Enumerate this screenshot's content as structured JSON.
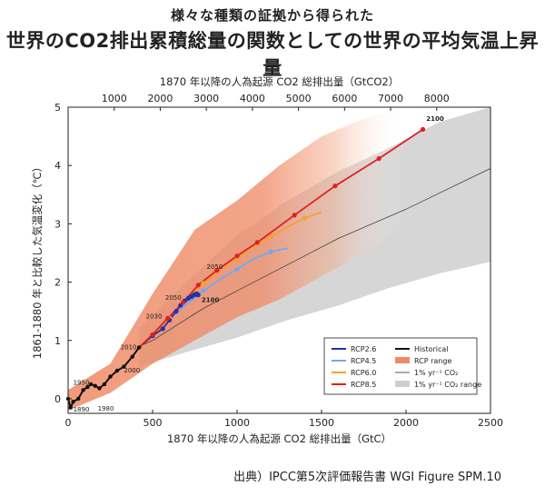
{
  "header": {
    "title_line1": "様々な種類の証拠から得られた",
    "title_line2": "世界のCO2排出累積総量の関数としての世界の平均気温上昇量"
  },
  "source": "出典）IPCC第5次評価報告書 WGI Figure SPM.10",
  "colors": {
    "rcp26": "#2233aa",
    "rcp45": "#77a8e8",
    "rcp60": "#f5a030",
    "rcp85": "#e02020",
    "historical": "#111111",
    "rcp_range": "#ef8a66",
    "onepct_range": "#cfcfcf",
    "onepct_line": "#444444"
  },
  "chart_data": {
    "type": "line",
    "xlabel": "1870 年以降の人為起源 CO2 総排出量（GtC）",
    "top_xlabel": "1870 年以降の人為起源 CO2 総排出量（GtCO2）",
    "ylabel": "1861-1880 年と比較した気温変化（℃）",
    "xlim": [
      0,
      2500
    ],
    "ylim": [
      -0.25,
      5
    ],
    "x_ticks": [
      0,
      500,
      1000,
      1500,
      2000,
      2500
    ],
    "y_ticks": [
      0,
      1,
      2,
      3,
      4,
      5
    ],
    "top_x_ticks": [
      1000,
      2000,
      3000,
      4000,
      5000,
      6000,
      7000,
      8000
    ],
    "grid": false,
    "legend_position": "bottom-right",
    "legend": [
      {
        "key": "rcp26",
        "label": "RCP2.6",
        "kind": "line"
      },
      {
        "key": "rcp45",
        "label": "RCP4.5",
        "kind": "line"
      },
      {
        "key": "rcp60",
        "label": "RCP6.0",
        "kind": "line"
      },
      {
        "key": "rcp85",
        "label": "RCP8.5",
        "kind": "line"
      },
      {
        "key": "historical",
        "label": "Historical",
        "kind": "line"
      },
      {
        "key": "rcp_range",
        "label": "RCP range",
        "kind": "patch"
      },
      {
        "key": "onepct_line",
        "label": "1% yr⁻¹ CO₂",
        "kind": "thin"
      },
      {
        "key": "onepct_range",
        "label": "1% yr⁻¹ CO₂ range",
        "kind": "patch"
      }
    ],
    "series": [
      {
        "key": "historical",
        "name": "Historical",
        "x": [
          0,
          15,
          30,
          60,
          90,
          115,
          135,
          160,
          185,
          215,
          250,
          290,
          330,
          380,
          420
        ],
        "y": [
          0.0,
          -0.15,
          -0.05,
          0.0,
          0.15,
          0.2,
          0.25,
          0.22,
          0.18,
          0.25,
          0.38,
          0.48,
          0.55,
          0.72,
          0.88
        ]
      },
      {
        "key": "rcp26",
        "name": "RCP2.6",
        "x": [
          420,
          500,
          560,
          600,
          640,
          665,
          690,
          710,
          730,
          745,
          755,
          760,
          765,
          770
        ],
        "y": [
          0.88,
          1.08,
          1.2,
          1.35,
          1.5,
          1.6,
          1.68,
          1.72,
          1.75,
          1.78,
          1.79,
          1.8,
          1.79,
          1.78
        ]
      },
      {
        "key": "rcp45",
        "name": "RCP4.5",
        "x": [
          420,
          500,
          600,
          700,
          800,
          900,
          1000,
          1100,
          1200,
          1300
        ],
        "y": [
          0.88,
          1.1,
          1.38,
          1.62,
          1.85,
          2.05,
          2.22,
          2.4,
          2.52,
          2.58
        ]
      },
      {
        "key": "rcp60",
        "name": "RCP6.0",
        "x": [
          420,
          500,
          600,
          700,
          800,
          900,
          1000,
          1100,
          1200,
          1300,
          1400,
          1500
        ],
        "y": [
          0.88,
          1.1,
          1.38,
          1.7,
          1.98,
          2.2,
          2.4,
          2.6,
          2.78,
          2.95,
          3.1,
          3.2
        ]
      },
      {
        "key": "rcp85",
        "name": "RCP8.5",
        "x": [
          420,
          500,
          590,
          680,
          770,
          880,
          1000,
          1120,
          1340,
          1580,
          1840,
          2100
        ],
        "y": [
          0.88,
          1.1,
          1.38,
          1.65,
          1.95,
          2.2,
          2.45,
          2.68,
          3.15,
          3.65,
          4.12,
          4.62
        ]
      },
      {
        "key": "onepct_line",
        "name": "1% yr⁻¹ CO₂",
        "x": [
          420,
          500,
          800,
          1000,
          1300,
          1600,
          2000,
          2500
        ],
        "y": [
          0.9,
          1.0,
          1.55,
          1.85,
          2.3,
          2.75,
          3.25,
          3.95
        ]
      }
    ],
    "bands": [
      {
        "key": "rcp_range",
        "name": "RCP range",
        "x": [
          0,
          250,
          500,
          750,
          1000,
          1250,
          1500,
          1750,
          2000,
          2100
        ],
        "lower": [
          -0.2,
          0.1,
          0.6,
          1.0,
          1.4,
          1.7,
          2.1,
          2.5,
          3.0,
          3.2
        ],
        "upper": [
          0.15,
          0.6,
          1.8,
          2.9,
          3.4,
          4.0,
          4.5,
          4.8,
          5.0,
          5.0
        ]
      },
      {
        "key": "onepct_range",
        "name": "1% yr⁻¹ CO₂ range",
        "x": [
          420,
          700,
          1000,
          1300,
          1600,
          1900,
          2200,
          2500
        ],
        "lower": [
          0.55,
          0.8,
          1.05,
          1.35,
          1.6,
          1.9,
          2.15,
          2.35
        ],
        "upper": [
          1.2,
          2.0,
          2.8,
          3.4,
          3.9,
          4.3,
          4.75,
          5.0
        ]
      }
    ],
    "annotations": [
      {
        "text": "1890",
        "x": 30,
        "y": -0.22
      },
      {
        "text": "1950",
        "x": 30,
        "y": 0.24
      },
      {
        "text": "1980",
        "x": 175,
        "y": -0.2
      },
      {
        "text": "2000",
        "x": 330,
        "y": 0.45
      },
      {
        "text": "2010",
        "x": 310,
        "y": 0.85
      },
      {
        "text": "2030",
        "x": 460,
        "y": 1.38
      },
      {
        "text": "2050",
        "x": 575,
        "y": 1.7
      },
      {
        "text": "2050",
        "x": 820,
        "y": 2.23
      },
      {
        "text": "2100",
        "x": 790,
        "y": 1.66
      },
      {
        "text": "2100",
        "x": 2120,
        "y": 4.77
      }
    ]
  }
}
